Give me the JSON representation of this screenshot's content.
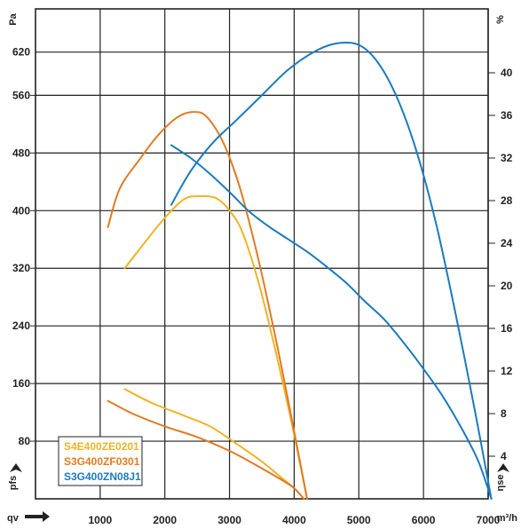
{
  "chart_data": {
    "type": "line",
    "title": "",
    "x_axis": {
      "label": "qv",
      "unit": "m³/h",
      "range": [
        0,
        7000
      ],
      "ticks": [
        {
          "v": 1000,
          "label": "1000"
        },
        {
          "v": 2000,
          "label": "2000"
        },
        {
          "v": 3000,
          "label": "3000"
        },
        {
          "v": 4000,
          "label": "4000"
        },
        {
          "v": 5000,
          "label": "5000"
        },
        {
          "v": 6000,
          "label": "6000"
        },
        {
          "v": 7000,
          "label": "7000"
        }
      ]
    },
    "y_left": {
      "label": "pfs",
      "unit": "Pa",
      "range": [
        0,
        680
      ],
      "ticks": [
        {
          "v": 80,
          "label": "80"
        },
        {
          "v": 160,
          "label": "160"
        },
        {
          "v": 240,
          "label": "240"
        },
        {
          "v": 320,
          "label": "320"
        },
        {
          "v": 400,
          "label": "400"
        },
        {
          "v": 480,
          "label": "480"
        },
        {
          "v": 560,
          "label": "560"
        },
        {
          "v": 620,
          "label": "620"
        }
      ]
    },
    "y_right": {
      "label": "ηse",
      "unit": "%",
      "range": [
        0,
        46
      ],
      "ticks": [
        {
          "v": 4,
          "label": "4"
        },
        {
          "v": 8,
          "label": "8"
        },
        {
          "v": 12,
          "label": "12"
        },
        {
          "v": 16,
          "label": "16"
        },
        {
          "v": 20,
          "label": "20"
        },
        {
          "v": 24,
          "label": "24"
        },
        {
          "v": 28,
          "label": "28"
        },
        {
          "v": 32,
          "label": "32"
        },
        {
          "v": 36,
          "label": "36"
        },
        {
          "v": 40,
          "label": "40"
        }
      ]
    },
    "legend": {
      "position": "bottom-left",
      "entries": [
        {
          "name": "S4E400ZE0201",
          "color": "#f0b323"
        },
        {
          "name": "S3G400ZF0301",
          "color": "#e07b22"
        },
        {
          "name": "S3G400ZN08J1",
          "color": "#1a7abf"
        }
      ]
    },
    "grid": true,
    "series": [
      {
        "name": "S4E400ZE0201",
        "color": "#f0b323",
        "kind": "pressure",
        "axis": "left",
        "points": [
          [
            1380,
            320
          ],
          [
            1700,
            357
          ],
          [
            2000,
            390
          ],
          [
            2300,
            416
          ],
          [
            2550,
            420
          ],
          [
            2800,
            417
          ],
          [
            3000,
            400
          ],
          [
            3200,
            370
          ],
          [
            3450,
            300
          ],
          [
            3700,
            210
          ],
          [
            3950,
            110
          ],
          [
            4200,
            0
          ]
        ]
      },
      {
        "name": "S3G400ZF0301",
        "color": "#e07b22",
        "kind": "pressure",
        "axis": "left",
        "points": [
          [
            1120,
            377
          ],
          [
            1300,
            430
          ],
          [
            1600,
            470
          ],
          [
            1900,
            505
          ],
          [
            2200,
            530
          ],
          [
            2450,
            537
          ],
          [
            2650,
            530
          ],
          [
            2900,
            495
          ],
          [
            3150,
            435
          ],
          [
            3400,
            350
          ],
          [
            3650,
            250
          ],
          [
            3900,
            140
          ],
          [
            4200,
            0
          ]
        ]
      },
      {
        "name": "S3G400ZN08J1",
        "color": "#1a7abf",
        "kind": "pressure",
        "axis": "left",
        "points": [
          [
            2100,
            408
          ],
          [
            2400,
            455
          ],
          [
            2750,
            495
          ],
          [
            3100,
            525
          ],
          [
            3500,
            560
          ],
          [
            3900,
            595
          ],
          [
            4300,
            620
          ],
          [
            4650,
            632
          ],
          [
            5000,
            630
          ],
          [
            5300,
            605
          ],
          [
            5600,
            555
          ],
          [
            5900,
            480
          ],
          [
            6200,
            380
          ],
          [
            6500,
            255
          ],
          [
            6800,
            120
          ],
          [
            7050,
            0
          ]
        ]
      },
      {
        "name": "S4E400ZE0201",
        "color": "#f0b323",
        "kind": "efficiency",
        "axis": "right",
        "points": [
          [
            1380,
            10.3
          ],
          [
            1800,
            9.0
          ],
          [
            2300,
            7.8
          ],
          [
            2700,
            6.8
          ],
          [
            3100,
            5.2
          ],
          [
            3500,
            3.5
          ],
          [
            3800,
            2.0
          ],
          [
            4000,
            1.0
          ],
          [
            4150,
            0
          ]
        ]
      },
      {
        "name": "S3G400ZF0301",
        "color": "#e07b22",
        "kind": "efficiency",
        "axis": "right",
        "points": [
          [
            1120,
            9.2
          ],
          [
            1500,
            8.0
          ],
          [
            2000,
            6.8
          ],
          [
            2500,
            5.8
          ],
          [
            3000,
            4.5
          ],
          [
            3400,
            3.2
          ],
          [
            3800,
            1.8
          ],
          [
            4000,
            1.0
          ],
          [
            4150,
            0
          ]
        ]
      },
      {
        "name": "S3G400ZN08J1",
        "color": "#1a7abf",
        "kind": "efficiency",
        "axis": "right",
        "points": [
          [
            2100,
            33.2
          ],
          [
            2400,
            32.0
          ],
          [
            2700,
            30.5
          ],
          [
            3000,
            28.8
          ],
          [
            3300,
            27.0
          ],
          [
            3600,
            25.6
          ],
          [
            3900,
            24.4
          ],
          [
            4200,
            23.2
          ],
          [
            4500,
            21.8
          ],
          [
            4800,
            20.3
          ],
          [
            5100,
            18.5
          ],
          [
            5400,
            16.8
          ],
          [
            5700,
            14.6
          ],
          [
            6000,
            12.2
          ],
          [
            6300,
            9.6
          ],
          [
            6600,
            6.5
          ],
          [
            6850,
            3.5
          ],
          [
            7050,
            0
          ]
        ]
      }
    ]
  }
}
